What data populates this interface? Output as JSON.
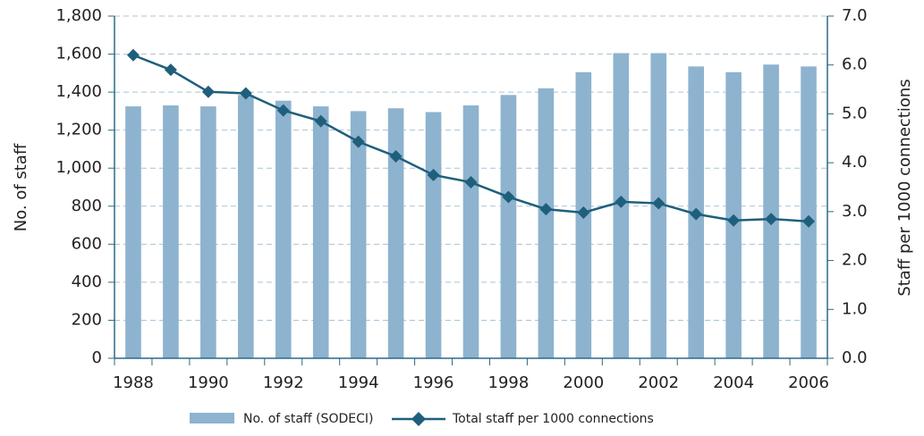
{
  "chart_data": {
    "type": "bar",
    "categories": [
      "1988",
      null,
      "1990",
      null,
      "1992",
      null,
      "1994",
      null,
      "1996",
      null,
      "1998",
      null,
      "2000",
      null,
      "2002",
      null,
      "2004",
      null,
      "2006"
    ],
    "y_label": "No. of staff",
    "y2_label": "Staff per 1000 connections",
    "ylim": [
      0,
      1800
    ],
    "yticks": [
      0,
      200,
      400,
      600,
      800,
      {
        "value": 1000,
        "label": "1,000"
      },
      {
        "value": 1200,
        "label": "1,200"
      },
      {
        "value": 1400,
        "label": "1,400"
      },
      {
        "value": 1600,
        "label": "1,600"
      },
      {
        "value": 1800,
        "label": "1,800"
      }
    ],
    "y2lim": [
      0,
      7
    ],
    "y2ticks": [
      {
        "value": 0,
        "label": "0.0"
      },
      {
        "value": 1,
        "label": "1.0"
      },
      {
        "value": 2,
        "label": "2.0"
      },
      {
        "value": 3,
        "label": "3.0"
      },
      {
        "value": 4,
        "label": "4.0"
      },
      {
        "value": 5,
        "label": "5.0"
      },
      {
        "value": 6,
        "label": "6.0"
      },
      {
        "value": 7,
        "label": "7.0"
      }
    ],
    "grid": true,
    "legend": "bottom",
    "series": [
      {
        "name": "No. of staff (SODECI)",
        "type": "bar",
        "color": "#8db3cf",
        "values": [
          1325,
          1330,
          1325,
          1385,
          1355,
          1325,
          1300,
          1315,
          1295,
          1330,
          1385,
          1420,
          1505,
          1605,
          1605,
          1535,
          1505,
          1545,
          1535
        ]
      },
      {
        "name": "Total staff per 1000 connections",
        "type": "line",
        "axis": "y2",
        "color": "#1f5f7c",
        "values": [
          6.2,
          5.9,
          5.45,
          5.42,
          5.07,
          4.85,
          4.43,
          4.13,
          3.75,
          3.6,
          3.3,
          3.05,
          2.98,
          3.2,
          3.17,
          2.95,
          2.82,
          2.85,
          2.8
        ]
      }
    ]
  }
}
